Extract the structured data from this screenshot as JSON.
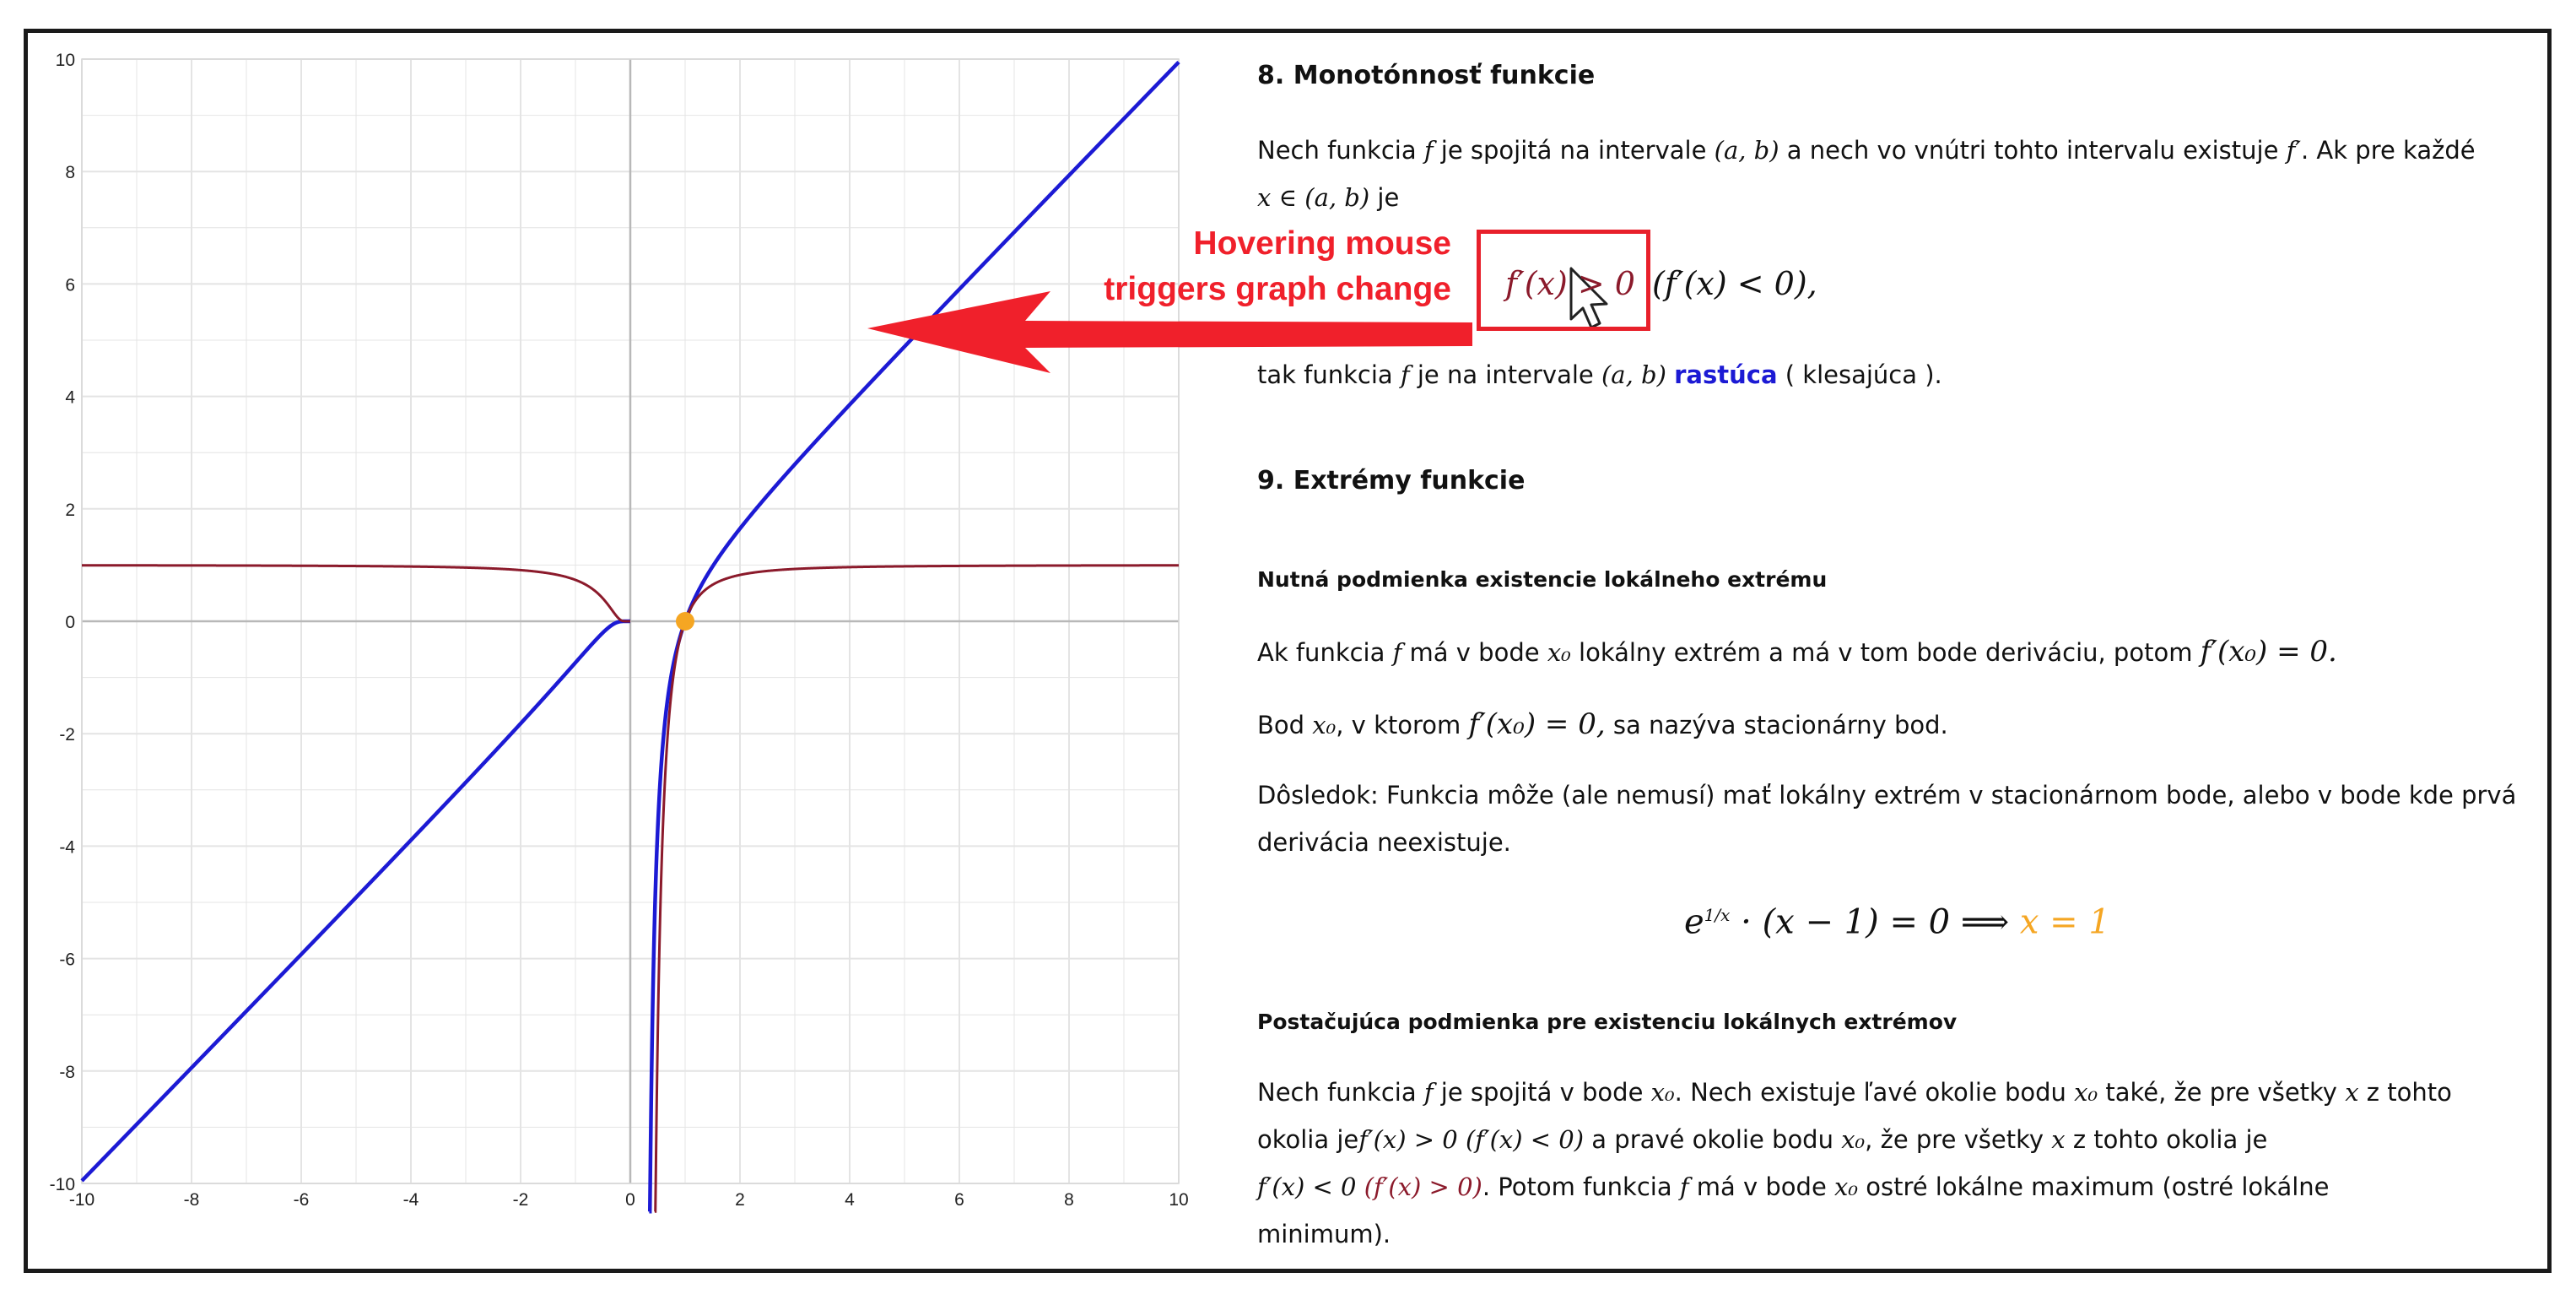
{
  "chart_data": {
    "type": "line",
    "xlim": [
      -10,
      10
    ],
    "ylim": [
      -10,
      10
    ],
    "x_ticks": [
      "-10",
      "-8",
      "-6",
      "-4",
      "-2",
      "0",
      "2",
      "4",
      "6",
      "8",
      "10"
    ],
    "y_ticks": [
      "10",
      "8",
      "6",
      "4",
      "2",
      "0",
      "-2",
      "-4",
      "-6",
      "-8",
      "-10"
    ],
    "grid": true,
    "series": [
      {
        "function": "f(x) = e^(1/x)·(x-1)",
        "color": "#1c1ad4"
      },
      {
        "function": "f'(x) = e^(1/x)·(x^2-x+1)/x^2 restricted where f'(x)>0",
        "color": "#8b1a2b"
      }
    ],
    "highlight_point": {
      "x": 1,
      "y": 0,
      "color": "#f5a623"
    }
  },
  "annotation": {
    "label_line1": "Hovering mouse",
    "label_line2": "triggers graph change",
    "color": "#f0202b"
  },
  "sections": {
    "s8_title": "8. Monotónnosť funkcie",
    "s8_p1_a": "Nech funkcia ",
    "s8_p1_f": "f",
    "s8_p1_b": " je spojitá na intervale ",
    "s8_p1_interval": "(a, b)",
    "s8_p1_c": " a nech vo vnútri tohto intervalu existuje ",
    "s8_p1_fprime": "f′",
    "s8_p1_d": ". Ak pre každé",
    "s8_p1_x": "x ∈ (a, b)",
    "s8_p1_e": " je",
    "s8_cond_hover": "f′(x) > 0",
    "s8_cond_rest": "(f′(x) < 0),",
    "s8_p2_a": "tak funkcia ",
    "s8_p2_f": "f",
    "s8_p2_b": " je na intervale ",
    "s8_p2_interval": "(a, b)",
    "s8_p2_rastuca": "rastúca",
    "s8_p2_c": " ( klesajúca ).",
    "s9_title": "9. Extrémy funkcie",
    "s9_sub1": "Nutná podmienka existencie lokálneho extrému",
    "s9_p1_a": "Ak funkcia ",
    "s9_p1_f": "f",
    "s9_p1_b": " má v bode ",
    "s9_p1_x0": "x₀",
    "s9_p1_c": " lokálny extrém a má v tom bode deriváciu, potom ",
    "s9_p1_eq": "f′(x₀) = 0.",
    "s9_p2_a": "Bod ",
    "s9_p2_x0": "x₀",
    "s9_p2_b": ", v ktorom ",
    "s9_p2_eq": "f′(x₀) = 0,",
    "s9_p2_c": " sa nazýva stacionárny bod.",
    "s9_p3_line1": "Dôsledok: Funkcia môže (ale nemusí) mať lokálny extrém v stacionárnom bode, alebo v bode kde prvá",
    "s9_p3_line2": "derivácia neexistuje.",
    "s9_eq_e": "e",
    "s9_eq_exp": "1/x",
    "s9_eq_rest": " · (x − 1) = 0  ⟹  ",
    "s9_eq_res": "x = 1",
    "s9_sub2": "Postačujúca podmienka pre existenciu lokálnych extrémov",
    "s9_p4_l1a": "Nech funkcia ",
    "s9_p4_l1f": "f",
    "s9_p4_l1b": " je spojitá v bode ",
    "s9_p4_l1x0": "x₀",
    "s9_p4_l1c": ". Nech existuje ľavé okolie bodu ",
    "s9_p4_l1x0b": "x₀",
    "s9_p4_l1d": " také, že pre všetky ",
    "s9_p4_l1x": "x",
    "s9_p4_l1e": " z tohto",
    "s9_p4_l2a": "okolia je",
    "s9_p4_l2m": "f′(x) > 0 (f′(x) < 0)",
    "s9_p4_l2b": " a pravé okolie bodu ",
    "s9_p4_l2x0": "x₀",
    "s9_p4_l2c": ", že pre všetky ",
    "s9_p4_l2x": "x",
    "s9_p4_l2d": " z tohto okolia je",
    "s9_p4_l3m1": "f′(x) < 0",
    "s9_p4_l3m2": "(f′(x) > 0)",
    "s9_p4_l3a": ". Potom funkcia ",
    "s9_p4_l3f": "f",
    "s9_p4_l3b": " má v bode ",
    "s9_p4_l3x0": "x₀",
    "s9_p4_l3c": " ostré lokálne maximum (ostré lokálne",
    "s9_p4_l4": "minimum)."
  }
}
